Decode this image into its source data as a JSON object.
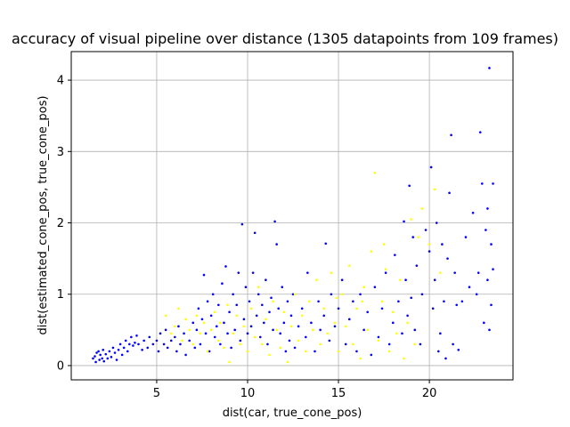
{
  "chart_data": {
    "type": "scatter",
    "title": "accuracy of visual pipeline over distance (1305 datapoints from 109 frames)",
    "xlabel": "dist(car, true_cone_pos)",
    "ylabel": "dist(estimated_cone_pos, true_cone_pos)",
    "xlim": [
      0.3,
      24.6
    ],
    "ylim": [
      -0.2,
      4.4
    ],
    "xticks": [
      5,
      10,
      15,
      20
    ],
    "yticks": [
      0,
      1,
      2,
      3,
      4
    ],
    "grid": true,
    "legend": "none",
    "series": [
      {
        "color": "#0000ff",
        "points": [
          [
            1.5,
            0.1
          ],
          [
            1.6,
            0.13
          ],
          [
            1.65,
            0.05
          ],
          [
            1.7,
            0.18
          ],
          [
            1.8,
            0.2
          ],
          [
            1.85,
            0.08
          ],
          [
            1.9,
            0.15
          ],
          [
            2.0,
            0.1
          ],
          [
            2.05,
            0.22
          ],
          [
            2.1,
            0.06
          ],
          [
            2.2,
            0.16
          ],
          [
            2.3,
            0.1
          ],
          [
            2.4,
            0.2
          ],
          [
            2.5,
            0.12
          ],
          [
            2.6,
            0.25
          ],
          [
            2.7,
            0.18
          ],
          [
            2.8,
            0.08
          ],
          [
            2.9,
            0.22
          ],
          [
            3.0,
            0.3
          ],
          [
            3.1,
            0.15
          ],
          [
            3.2,
            0.25
          ],
          [
            3.3,
            0.35
          ],
          [
            3.4,
            0.2
          ],
          [
            3.5,
            0.3
          ],
          [
            3.6,
            0.4
          ],
          [
            3.7,
            0.28
          ],
          [
            3.8,
            0.32
          ],
          [
            3.9,
            0.42
          ],
          [
            4.0,
            0.3
          ],
          [
            4.2,
            0.22
          ],
          [
            4.3,
            0.35
          ],
          [
            4.5,
            0.25
          ],
          [
            4.6,
            0.4
          ],
          [
            4.8,
            0.3
          ],
          [
            5.0,
            0.35
          ],
          [
            5.1,
            0.2
          ],
          [
            5.2,
            0.45
          ],
          [
            5.4,
            0.3
          ],
          [
            5.5,
            0.5
          ],
          [
            5.6,
            0.25
          ],
          [
            5.8,
            0.35
          ],
          [
            6.0,
            0.4
          ],
          [
            6.1,
            0.2
          ],
          [
            6.2,
            0.55
          ],
          [
            6.3,
            0.3
          ],
          [
            6.5,
            0.45
          ],
          [
            6.6,
            0.15
          ],
          [
            6.8,
            0.35
          ],
          [
            7.0,
            0.6
          ],
          [
            7.1,
            0.25
          ],
          [
            7.2,
            0.5
          ],
          [
            7.3,
            0.8
          ],
          [
            7.4,
            0.3
          ],
          [
            7.5,
            0.65
          ],
          [
            7.6,
            1.27
          ],
          [
            7.7,
            0.45
          ],
          [
            7.8,
            0.9
          ],
          [
            7.9,
            0.2
          ],
          [
            8.0,
            0.7
          ],
          [
            8.1,
            1.0
          ],
          [
            8.2,
            0.4
          ],
          [
            8.3,
            0.55
          ],
          [
            8.4,
            0.85
          ],
          [
            8.5,
            0.3
          ],
          [
            8.6,
            1.15
          ],
          [
            8.7,
            0.6
          ],
          [
            8.8,
            1.39
          ],
          [
            8.9,
            0.45
          ],
          [
            9.0,
            0.75
          ],
          [
            9.1,
            0.25
          ],
          [
            9.2,
            1.0
          ],
          [
            9.3,
            0.5
          ],
          [
            9.4,
            0.85
          ],
          [
            9.5,
            1.3
          ],
          [
            9.6,
            0.35
          ],
          [
            9.7,
            1.98
          ],
          [
            9.8,
            0.65
          ],
          [
            9.9,
            1.1
          ],
          [
            10.0,
            0.45
          ],
          [
            10.1,
            0.9
          ],
          [
            10.2,
            0.55
          ],
          [
            10.3,
            1.3
          ],
          [
            10.4,
            1.86
          ],
          [
            10.5,
            0.7
          ],
          [
            10.6,
            1.0
          ],
          [
            10.7,
            0.4
          ],
          [
            10.8,
            0.85
          ],
          [
            10.9,
            0.6
          ],
          [
            11.0,
            1.2
          ],
          [
            11.1,
            0.3
          ],
          [
            11.2,
            0.75
          ],
          [
            11.3,
            0.95
          ],
          [
            11.4,
            0.5
          ],
          [
            11.5,
            2.02
          ],
          [
            11.6,
            1.7
          ],
          [
            11.7,
            0.8
          ],
          [
            11.8,
            0.45
          ],
          [
            11.9,
            1.1
          ],
          [
            12.0,
            0.6
          ],
          [
            12.1,
            0.2
          ],
          [
            12.2,
            0.9
          ],
          [
            12.3,
            0.35
          ],
          [
            12.4,
            0.7
          ],
          [
            12.5,
            1.0
          ],
          [
            12.6,
            0.25
          ],
          [
            12.8,
            0.55
          ],
          [
            13.0,
            0.8
          ],
          [
            13.2,
            0.4
          ],
          [
            13.3,
            1.3
          ],
          [
            13.5,
            0.6
          ],
          [
            13.7,
            0.2
          ],
          [
            13.9,
            0.9
          ],
          [
            14.0,
            0.5
          ],
          [
            14.2,
            0.7
          ],
          [
            14.3,
            1.71
          ],
          [
            14.5,
            0.35
          ],
          [
            14.6,
            1.0
          ],
          [
            14.8,
            0.55
          ],
          [
            15.0,
            0.8
          ],
          [
            15.2,
            1.2
          ],
          [
            15.4,
            0.3
          ],
          [
            15.6,
            0.65
          ],
          [
            15.8,
            0.9
          ],
          [
            16.0,
            0.2
          ],
          [
            16.2,
            1.0
          ],
          [
            16.4,
            0.5
          ],
          [
            16.6,
            0.75
          ],
          [
            16.8,
            0.15
          ],
          [
            17.0,
            1.1
          ],
          [
            17.2,
            0.4
          ],
          [
            17.4,
            0.8
          ],
          [
            17.6,
            1.3
          ],
          [
            17.8,
            0.3
          ],
          [
            18.0,
            0.6
          ],
          [
            18.1,
            1.55
          ],
          [
            18.3,
            0.9
          ],
          [
            18.5,
            0.45
          ],
          [
            18.6,
            2.02
          ],
          [
            18.7,
            1.2
          ],
          [
            18.8,
            0.7
          ],
          [
            18.9,
            2.52
          ],
          [
            19.0,
            0.95
          ],
          [
            19.1,
            1.8
          ],
          [
            19.2,
            0.5
          ],
          [
            19.3,
            1.4
          ],
          [
            19.5,
            0.3
          ],
          [
            19.6,
            1.0
          ],
          [
            19.8,
            1.9
          ],
          [
            20.0,
            1.6
          ],
          [
            20.1,
            2.78
          ],
          [
            20.2,
            0.8
          ],
          [
            20.3,
            1.2
          ],
          [
            20.4,
            2.0
          ],
          [
            20.5,
            0.2
          ],
          [
            20.6,
            0.45
          ],
          [
            20.7,
            1.7
          ],
          [
            20.8,
            0.9
          ],
          [
            20.9,
            0.1
          ],
          [
            21.0,
            1.5
          ],
          [
            21.1,
            2.42
          ],
          [
            21.2,
            3.23
          ],
          [
            21.3,
            0.3
          ],
          [
            21.4,
            1.3
          ],
          [
            21.5,
            0.85
          ],
          [
            21.6,
            0.22
          ],
          [
            21.8,
            0.9
          ],
          [
            22.0,
            1.8
          ],
          [
            22.2,
            1.1
          ],
          [
            22.4,
            2.14
          ],
          [
            22.6,
            1.0
          ],
          [
            22.7,
            1.3
          ],
          [
            22.8,
            3.27
          ],
          [
            22.9,
            2.55
          ],
          [
            23.0,
            0.6
          ],
          [
            23.1,
            1.9
          ],
          [
            23.2,
            1.2
          ],
          [
            23.3,
            0.5
          ],
          [
            23.3,
            4.17
          ],
          [
            23.4,
            1.7
          ],
          [
            23.5,
            2.55
          ],
          [
            23.4,
            0.85
          ],
          [
            23.5,
            1.35
          ],
          [
            23.2,
            2.2
          ]
        ]
      },
      {
        "color": "#ffff00",
        "points": [
          [
            5.5,
            0.7
          ],
          [
            5.8,
            0.45
          ],
          [
            6.0,
            0.55
          ],
          [
            6.2,
            0.8
          ],
          [
            6.4,
            0.35
          ],
          [
            6.6,
            0.65
          ],
          [
            6.8,
            0.5
          ],
          [
            7.0,
            0.3
          ],
          [
            7.2,
            0.7
          ],
          [
            7.4,
            0.45
          ],
          [
            7.6,
            0.6
          ],
          [
            7.8,
            0.2
          ],
          [
            8.0,
            0.5
          ],
          [
            8.2,
            0.75
          ],
          [
            8.4,
            0.35
          ],
          [
            8.5,
            0.6
          ],
          [
            8.7,
            0.25
          ],
          [
            8.9,
            0.85
          ],
          [
            9.0,
            0.05
          ],
          [
            9.2,
            0.45
          ],
          [
            9.4,
            0.7
          ],
          [
            9.6,
            0.3
          ],
          [
            9.8,
            0.55
          ],
          [
            10.0,
            0.2
          ],
          [
            10.2,
            0.8
          ],
          [
            10.4,
            0.4
          ],
          [
            10.6,
            1.1
          ],
          [
            10.8,
            0.3
          ],
          [
            11.0,
            0.65
          ],
          [
            11.2,
            0.15
          ],
          [
            11.4,
            0.9
          ],
          [
            11.6,
            0.5
          ],
          [
            11.8,
            0.25
          ],
          [
            12.0,
            0.75
          ],
          [
            12.2,
            0.05
          ],
          [
            12.4,
            0.55
          ],
          [
            12.6,
            1.0
          ],
          [
            12.8,
            0.35
          ],
          [
            13.0,
            0.7
          ],
          [
            13.2,
            0.2
          ],
          [
            13.4,
            0.9
          ],
          [
            13.6,
            0.5
          ],
          [
            13.8,
            1.2
          ],
          [
            14.0,
            0.3
          ],
          [
            14.2,
            0.8
          ],
          [
            14.4,
            0.45
          ],
          [
            14.6,
            1.3
          ],
          [
            14.8,
            0.6
          ],
          [
            15.0,
            0.2
          ],
          [
            15.2,
            1.0
          ],
          [
            15.4,
            0.55
          ],
          [
            15.6,
            1.4
          ],
          [
            15.8,
            0.3
          ],
          [
            16.0,
            0.8
          ],
          [
            16.2,
            0.1
          ],
          [
            16.4,
            1.1
          ],
          [
            16.6,
            0.5
          ],
          [
            16.8,
            1.6
          ],
          [
            17.0,
            2.7
          ],
          [
            17.2,
            0.35
          ],
          [
            17.4,
            0.9
          ],
          [
            17.6,
            1.35
          ],
          [
            17.8,
            0.2
          ],
          [
            18.0,
            0.75
          ],
          [
            18.2,
            0.45
          ],
          [
            18.4,
            1.2
          ],
          [
            18.6,
            0.1
          ],
          [
            18.8,
            0.6
          ],
          [
            19.0,
            2.05
          ],
          [
            19.2,
            0.3
          ],
          [
            19.4,
            1.8
          ],
          [
            19.6,
            2.2
          ],
          [
            20.0,
            1.7
          ],
          [
            20.3,
            2.47
          ],
          [
            20.6,
            1.3
          ],
          [
            17.5,
            1.7
          ],
          [
            16.3,
            0.9
          ],
          [
            14.9,
            0.95
          ]
        ]
      }
    ]
  }
}
